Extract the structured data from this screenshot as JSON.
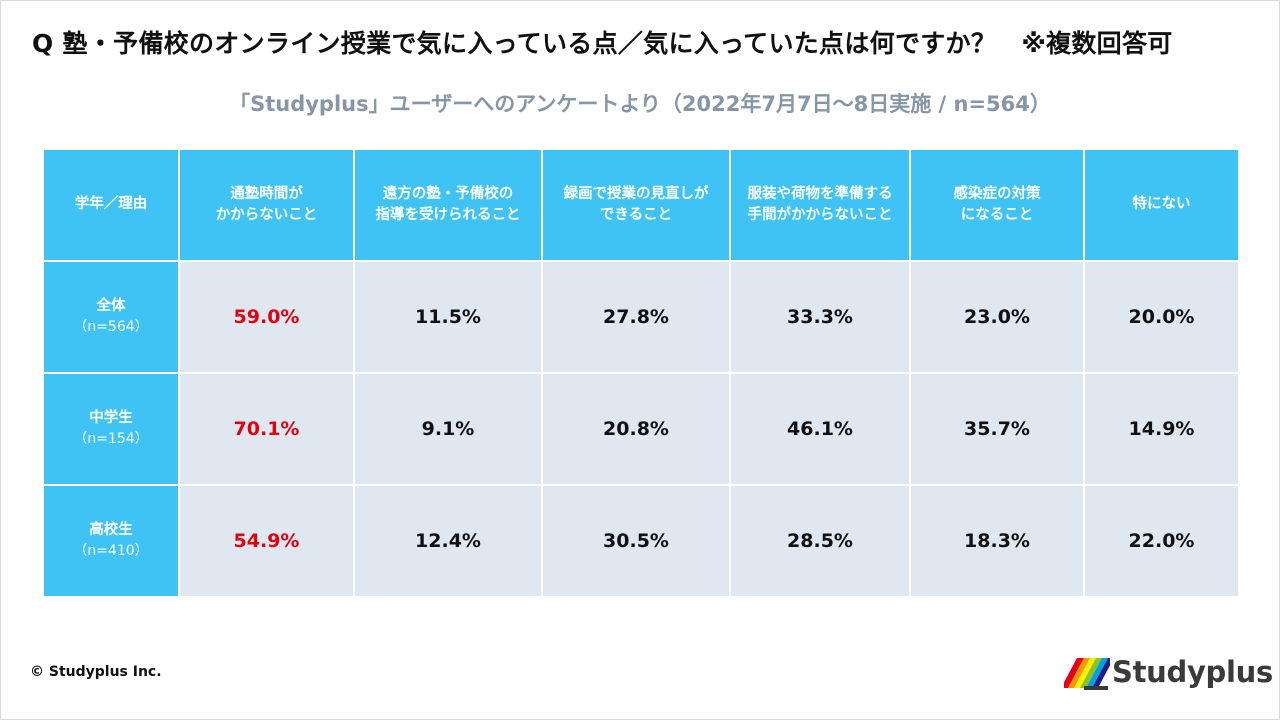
{
  "question": "Q 塾・予備校のオンライン授業で気に入っている点／気に入っていた点は何ですか？　※複数回答可",
  "subtitle": "「Studyplus」ユーザーへのアンケートより（2022年7月7日〜8日実施 / n=564）",
  "chart_data": {
    "type": "table",
    "row_header_label": "学年／理由",
    "columns": [
      "通塾時間が\nかからないこと",
      "遠方の塾・予備校の\n指導を受けられること",
      "録画で授業の見直しが\nできること",
      "服装や荷物を準備する\n手間がかからないこと",
      "感染症の対策\nになること",
      "特にない"
    ],
    "rows": [
      {
        "label": "全体",
        "n": "（n=564）",
        "values": [
          "59.0%",
          "11.5%",
          "27.8%",
          "33.3%",
          "23.0%",
          "20.0%"
        ]
      },
      {
        "label": "中学生",
        "n": "（n=154）",
        "values": [
          "70.1%",
          "9.1%",
          "20.8%",
          "46.1%",
          "35.7%",
          "14.9%"
        ]
      },
      {
        "label": "高校生",
        "n": "（n=410）",
        "values": [
          "54.9%",
          "12.4%",
          "30.5%",
          "28.5%",
          "18.3%",
          "22.0%"
        ]
      }
    ]
  },
  "colors": {
    "header_bg": "#3fc3f5",
    "cell_bg": "#dfe7f1",
    "highlight": "#e3000f",
    "subtitle": "#8796a6"
  },
  "footer": {
    "copyright": "© Studyplus Inc.",
    "logo_text": "Studyplus",
    "logo_icon": "studyplus-books-icon"
  }
}
